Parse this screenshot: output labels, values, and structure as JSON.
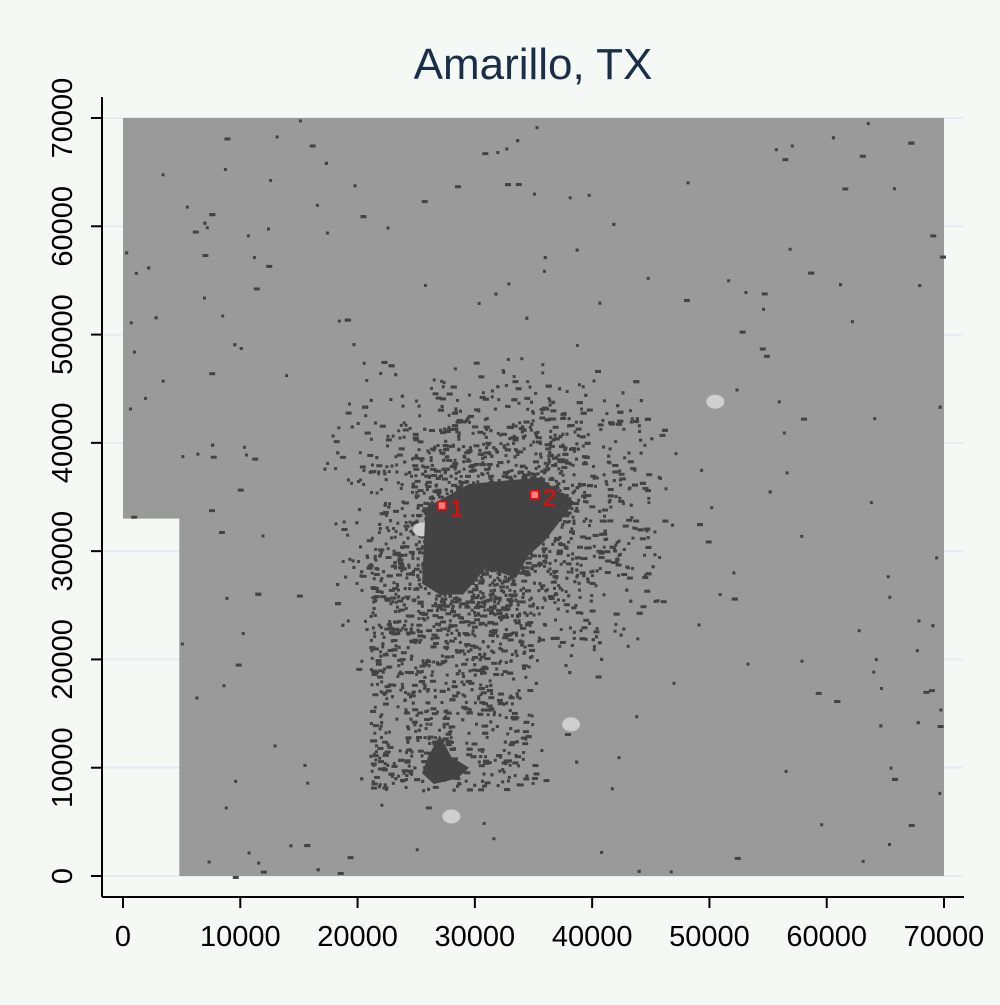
{
  "chart_data": {
    "type": "heatmap",
    "title": "Amarillo, TX",
    "xlabel": "",
    "ylabel": "",
    "xlim": [
      0,
      70000
    ],
    "ylim": [
      0,
      70000
    ],
    "x_ticks": [
      "0",
      "10000",
      "20000",
      "30000",
      "40000",
      "50000",
      "60000",
      "70000"
    ],
    "y_ticks": [
      "0",
      "10000",
      "20000",
      "30000",
      "40000",
      "50000",
      "60000",
      "70000"
    ],
    "grid": true,
    "legend": "none",
    "colors": {
      "background": "#f5f9f6",
      "grid": "#e4ecf2",
      "title": "#1a2e4a",
      "undeveloped": "#9a9a9a",
      "developed": "#434343",
      "light_patch": "#cfcfcf",
      "marker": "#ff0000",
      "marker_fill": "#ff8080"
    },
    "study_area": [
      [
        0,
        33000
      ],
      [
        0,
        70000
      ],
      [
        70000,
        70000
      ],
      [
        70000,
        0
      ],
      [
        4800,
        0
      ],
      [
        4800,
        33000
      ]
    ],
    "developed_core": [
      [
        25500,
        27000
      ],
      [
        25800,
        34000
      ],
      [
        29500,
        36200
      ],
      [
        35500,
        36800
      ],
      [
        38500,
        34500
      ],
      [
        36000,
        31000
      ],
      [
        34500,
        29500
      ],
      [
        33500,
        27500
      ],
      [
        31000,
        28500
      ],
      [
        29000,
        26000
      ],
      [
        27000,
        26000
      ]
    ],
    "developed_south": [
      [
        25500,
        9500
      ],
      [
        26000,
        11000
      ],
      [
        27000,
        13000
      ],
      [
        28000,
        11000
      ],
      [
        29500,
        10000
      ],
      [
        28500,
        9000
      ],
      [
        26500,
        8500
      ]
    ],
    "points": [
      {
        "label": "1",
        "x": 27200,
        "y": 34200
      },
      {
        "label": "2",
        "x": 35100,
        "y": 35200
      }
    ]
  }
}
